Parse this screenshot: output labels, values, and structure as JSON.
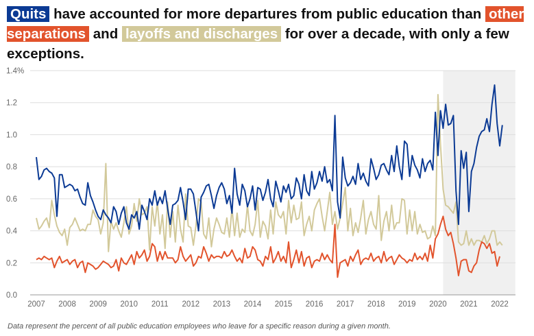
{
  "headline": {
    "quits": "Quits",
    "t1": "have accounted for more departures from public education than",
    "other": "other separations",
    "t2": "and",
    "layoffs": "layoffs and discharges",
    "t3": "for over a decade, with only a few exceptions."
  },
  "footnote": "Data represent the percent of all public education employees who leave for a specific reason during a given month.",
  "colors": {
    "quits": "#0b3a94",
    "other": "#e2532c",
    "layoffs": "#d2c99a",
    "shade": "#f0f0f0",
    "grid": "#dddddd"
  },
  "chart_data": {
    "type": "line",
    "x_start": "2007-01",
    "x_freq": "monthly",
    "x_ticks": [
      "2007",
      "2008",
      "2009",
      "2010",
      "2011",
      "2012",
      "2013",
      "2014",
      "2015",
      "2016",
      "2017",
      "2018",
      "2019",
      "2020",
      "2021",
      "2022"
    ],
    "y_ticks": [
      "0.0",
      "0.2",
      "0.4",
      "0.6",
      "0.8",
      "1.0",
      "1.2",
      "1.4%"
    ],
    "ylim": [
      0,
      1.4
    ],
    "shaded_period": [
      "2020-03",
      "2022-06"
    ],
    "grid": "horizontal",
    "series": [
      {
        "key": "quits",
        "values": [
          0.86,
          0.72,
          0.74,
          0.78,
          0.79,
          0.77,
          0.76,
          0.73,
          0.49,
          0.75,
          0.75,
          0.67,
          0.68,
          0.69,
          0.68,
          0.65,
          0.66,
          0.61,
          0.57,
          0.56,
          0.7,
          0.62,
          0.58,
          0.53,
          0.49,
          0.47,
          0.53,
          0.5,
          0.48,
          0.45,
          0.55,
          0.52,
          0.44,
          0.51,
          0.55,
          0.45,
          0.41,
          0.5,
          0.48,
          0.52,
          0.41,
          0.56,
          0.52,
          0.47,
          0.6,
          0.56,
          0.65,
          0.56,
          0.61,
          0.57,
          0.65,
          0.54,
          0.44,
          0.56,
          0.57,
          0.59,
          0.67,
          0.58,
          0.47,
          0.66,
          0.66,
          0.63,
          0.52,
          0.4,
          0.61,
          0.64,
          0.68,
          0.69,
          0.62,
          0.54,
          0.62,
          0.67,
          0.7,
          0.66,
          0.57,
          0.62,
          0.51,
          0.79,
          0.63,
          0.56,
          0.69,
          0.65,
          0.55,
          0.6,
          0.68,
          0.53,
          0.67,
          0.66,
          0.59,
          0.64,
          0.72,
          0.6,
          0.55,
          0.71,
          0.65,
          0.58,
          0.68,
          0.64,
          0.69,
          0.6,
          0.62,
          0.73,
          0.69,
          0.6,
          0.75,
          0.65,
          0.62,
          0.77,
          0.66,
          0.7,
          0.77,
          0.71,
          0.8,
          0.7,
          0.72,
          0.65,
          1.12,
          0.58,
          0.48,
          0.86,
          0.73,
          0.68,
          0.7,
          0.74,
          0.69,
          0.82,
          0.72,
          0.76,
          0.71,
          0.68,
          0.85,
          0.79,
          0.72,
          0.75,
          0.81,
          0.82,
          0.78,
          0.75,
          0.87,
          0.77,
          0.93,
          0.8,
          0.72,
          0.96,
          0.94,
          0.74,
          0.87,
          0.81,
          0.78,
          0.73,
          0.85,
          0.77,
          0.82,
          0.84,
          0.78,
          1.14,
          0.87,
          1.15,
          1.04,
          1.19,
          1.06,
          1.07,
          1.12,
          0.65,
          0.44,
          0.9,
          0.79,
          0.89,
          0.52,
          0.77,
          0.82,
          0.92,
          0.99,
          1.02,
          1.03,
          1.1,
          1.02,
          1.19,
          1.31,
          1.07,
          0.93,
          1.06
        ]
      },
      {
        "key": "other",
        "values": [
          0.22,
          0.23,
          0.22,
          0.24,
          0.23,
          0.22,
          0.23,
          0.17,
          0.21,
          0.24,
          0.2,
          0.21,
          0.22,
          0.19,
          0.21,
          0.22,
          0.17,
          0.2,
          0.21,
          0.14,
          0.2,
          0.19,
          0.18,
          0.16,
          0.17,
          0.19,
          0.21,
          0.2,
          0.19,
          0.17,
          0.18,
          0.22,
          0.15,
          0.23,
          0.2,
          0.19,
          0.22,
          0.25,
          0.19,
          0.27,
          0.23,
          0.25,
          0.28,
          0.21,
          0.24,
          0.32,
          0.3,
          0.21,
          0.27,
          0.22,
          0.27,
          0.23,
          0.23,
          0.23,
          0.2,
          0.22,
          0.3,
          0.24,
          0.21,
          0.23,
          0.25,
          0.18,
          0.2,
          0.24,
          0.23,
          0.3,
          0.26,
          0.21,
          0.25,
          0.23,
          0.24,
          0.24,
          0.23,
          0.27,
          0.24,
          0.25,
          0.28,
          0.24,
          0.21,
          0.23,
          0.2,
          0.29,
          0.23,
          0.24,
          0.3,
          0.28,
          0.22,
          0.21,
          0.18,
          0.24,
          0.22,
          0.3,
          0.2,
          0.23,
          0.27,
          0.21,
          0.24,
          0.2,
          0.33,
          0.17,
          0.22,
          0.28,
          0.2,
          0.27,
          0.18,
          0.23,
          0.24,
          0.17,
          0.21,
          0.22,
          0.21,
          0.26,
          0.22,
          0.25,
          0.22,
          0.2,
          0.44,
          0.11,
          0.2,
          0.21,
          0.22,
          0.18,
          0.24,
          0.21,
          0.25,
          0.28,
          0.19,
          0.22,
          0.23,
          0.22,
          0.26,
          0.21,
          0.23,
          0.24,
          0.2,
          0.27,
          0.21,
          0.23,
          0.24,
          0.19,
          0.22,
          0.25,
          0.23,
          0.22,
          0.2,
          0.22,
          0.21,
          0.26,
          0.22,
          0.24,
          0.22,
          0.26,
          0.21,
          0.31,
          0.23,
          0.35,
          0.38,
          0.44,
          0.49,
          0.41,
          0.37,
          0.39,
          0.32,
          0.23,
          0.12,
          0.21,
          0.22,
          0.22,
          0.15,
          0.14,
          0.18,
          0.2,
          0.28,
          0.33,
          0.32,
          0.29,
          0.32,
          0.26,
          0.27,
          0.18,
          0.24
        ]
      },
      {
        "key": "layoffs",
        "values": [
          0.48,
          0.41,
          0.43,
          0.46,
          0.48,
          0.42,
          0.59,
          0.5,
          0.43,
          0.39,
          0.37,
          0.41,
          0.31,
          0.42,
          0.44,
          0.48,
          0.44,
          0.4,
          0.41,
          0.4,
          0.44,
          0.44,
          0.53,
          0.49,
          0.47,
          0.38,
          0.45,
          0.82,
          0.27,
          0.46,
          0.41,
          0.45,
          0.4,
          0.36,
          0.45,
          0.55,
          0.38,
          0.43,
          0.57,
          0.46,
          0.6,
          0.5,
          0.51,
          0.55,
          0.28,
          0.55,
          0.43,
          0.58,
          0.38,
          0.5,
          0.29,
          0.58,
          0.36,
          0.52,
          0.33,
          0.56,
          0.41,
          0.33,
          0.63,
          0.43,
          0.42,
          0.31,
          0.43,
          0.6,
          0.58,
          0.38,
          0.35,
          0.48,
          0.3,
          0.41,
          0.48,
          0.44,
          0.39,
          0.38,
          0.48,
          0.36,
          0.54,
          0.37,
          0.51,
          0.36,
          0.41,
          0.39,
          0.56,
          0.4,
          0.37,
          0.44,
          0.59,
          0.36,
          0.46,
          0.43,
          0.35,
          0.53,
          0.38,
          0.58,
          0.5,
          0.48,
          0.52,
          0.38,
          0.59,
          0.45,
          0.56,
          0.47,
          0.48,
          0.58,
          0.37,
          0.44,
          0.49,
          0.4,
          0.53,
          0.57,
          0.6,
          0.49,
          0.4,
          0.52,
          0.64,
          0.44,
          0.52,
          0.41,
          0.48,
          0.57,
          0.67,
          0.4,
          0.54,
          0.37,
          0.45,
          0.39,
          0.48,
          0.59,
          0.38,
          0.47,
          0.52,
          0.44,
          0.41,
          0.62,
          0.34,
          0.46,
          0.52,
          0.4,
          0.56,
          0.41,
          0.45,
          0.45,
          0.6,
          0.59,
          0.38,
          0.53,
          0.4,
          0.52,
          0.38,
          0.44,
          0.39,
          0.4,
          0.35,
          0.36,
          0.43,
          0.37,
          1.25,
          0.94,
          0.66,
          0.56,
          0.55,
          0.53,
          0.51,
          0.58,
          0.33,
          0.31,
          0.32,
          0.4,
          0.31,
          0.35,
          0.31,
          0.34,
          0.34,
          0.33,
          0.37,
          0.32,
          0.35,
          0.4,
          0.4,
          0.31,
          0.33,
          0.31
        ]
      }
    ]
  }
}
